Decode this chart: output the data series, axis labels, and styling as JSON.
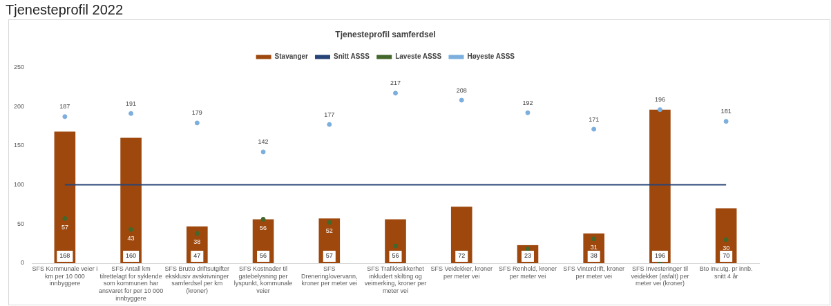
{
  "chart_data": {
    "type": "bar",
    "title": "Tjenesteprofil samferdsel",
    "annotations": [
      "Tjenesteprofil 2022"
    ],
    "categories": [
      "SFS Kommunale veier i km per 10 000 innbyggere",
      "SFS Antall km tilrettelagt for syklende som kommunen har ansvaret for per 10 000 innbyggere",
      "SFS Brutto driftsutgifter eksklusiv avskrivninger samferdsel per km (kroner)",
      "SFS Kostnader til gatebelysning per lyspunkt, kommunale veier",
      "SFS Drenering/overvann, kroner per meter vei",
      "SFS Trafikksikkerhet inkludert skilting og veimerking, kroner per meter vei",
      "SFS Veidekker, kroner per meter vei",
      "SFS Renhold, kroner per meter vei",
      "SFS Vinterdrift, kroner per meter vei",
      "SFS Investeringer til veidekker (asfalt) per meter vei (kroner)",
      "Bto inv.utg. pr innb. snitt 4 år"
    ],
    "series": [
      {
        "name": "Stavanger",
        "color": "#9e480e",
        "values": [
          168,
          160,
          47,
          56,
          57,
          56,
          72,
          23,
          38,
          196,
          70
        ],
        "value_labels": [
          "168",
          "160",
          "47",
          "56",
          "57",
          "56",
          "72",
          "23",
          "38",
          "196",
          "70"
        ]
      },
      {
        "name": "Snitt ASSS",
        "type": "line",
        "color": "#264478",
        "values": [
          100,
          100,
          100,
          100,
          100,
          100,
          100,
          100,
          100,
          100,
          100
        ]
      },
      {
        "name": "Laveste ASSS",
        "type": "scatter",
        "color": "#43682b",
        "values": [
          57,
          43,
          38,
          56,
          52,
          22,
          null,
          18,
          31,
          0,
          30
        ],
        "value_labels": [
          "57",
          "43",
          "38",
          "56",
          "52",
          null,
          null,
          null,
          "31",
          null,
          "30"
        ]
      },
      {
        "name": "Høyeste ASSS",
        "type": "scatter",
        "color": "#7cafdd",
        "values": [
          187,
          191,
          179,
          142,
          177,
          217,
          208,
          192,
          171,
          196,
          181
        ],
        "value_labels": [
          "187",
          "191",
          "179",
          "142",
          "177",
          "217",
          "208",
          "192",
          "171",
          "196",
          "181"
        ]
      }
    ],
    "ylim": [
      0,
      250
    ],
    "yticks": [
      0,
      50,
      100,
      150,
      200,
      250
    ],
    "grid": false,
    "legend": "top"
  }
}
